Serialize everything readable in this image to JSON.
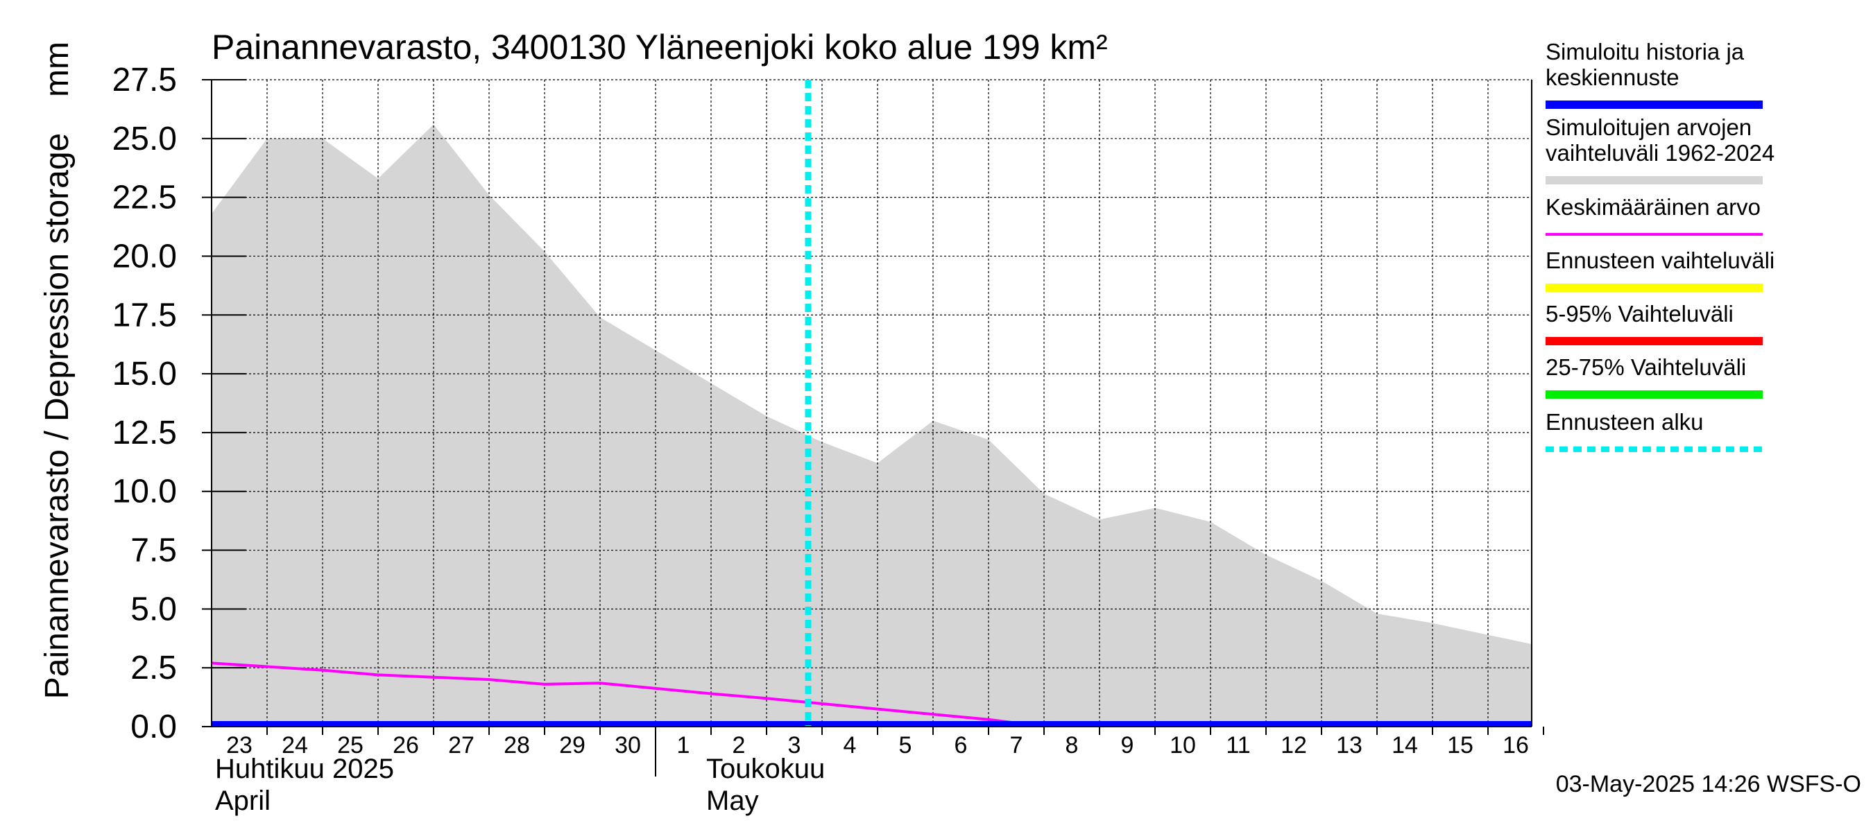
{
  "chart_data": {
    "type": "area",
    "title": "Painannevarasto, 3400130 Yläneenjoki koko alue 199 km²",
    "ylabel": "Painannevarasto / Depression storage",
    "yunit": "mm",
    "ylim": [
      0,
      27.5
    ],
    "yticks": [
      "0.0",
      "2.5",
      "5.0",
      "7.5",
      "10.0",
      "12.5",
      "15.0",
      "17.5",
      "20.0",
      "22.5",
      "25.0",
      "27.5"
    ],
    "x_day_labels": [
      "23",
      "24",
      "25",
      "26",
      "27",
      "28",
      "29",
      "30",
      "1",
      "2",
      "3",
      "4",
      "5",
      "6",
      "7",
      "8",
      "9",
      "10",
      "11",
      "12",
      "13",
      "14",
      "15",
      "16"
    ],
    "x_month_labels": [
      {
        "line1": "Huhtikuu  2025",
        "line2": "April"
      },
      {
        "line1": "Toukokuu",
        "line2": "May"
      }
    ],
    "grid": true,
    "legend_position": "right",
    "forecast_start": "2025-05-02 18:00",
    "series": [
      {
        "name": "Simuloitu historia ja keskiennuste",
        "type": "line",
        "color": "#0000ff",
        "points": [
          [
            "2025-04-22",
            0.0
          ],
          [
            "2025-05-17",
            0.0
          ]
        ]
      },
      {
        "name": "Simuloitujen arvojen vaihteluväli 1962-2024",
        "type": "band",
        "color": "#d5d5d5",
        "lower": [
          [
            "2025-04-22",
            0.0
          ],
          [
            "2025-05-17",
            0.0
          ]
        ],
        "upper": [
          [
            "2025-04-22",
            21.8
          ],
          [
            "2025-04-23",
            25.0
          ],
          [
            "2025-04-24",
            25.0
          ],
          [
            "2025-04-25",
            23.3
          ],
          [
            "2025-04-26",
            25.6
          ],
          [
            "2025-04-27",
            22.6
          ],
          [
            "2025-04-28",
            20.2
          ],
          [
            "2025-04-29",
            17.4
          ],
          [
            "2025-04-30",
            16.0
          ],
          [
            "2025-05-01",
            14.6
          ],
          [
            "2025-05-02",
            13.2
          ],
          [
            "2025-05-03",
            12.1
          ],
          [
            "2025-05-04",
            11.2
          ],
          [
            "2025-05-05",
            13.0
          ],
          [
            "2025-05-06",
            12.2
          ],
          [
            "2025-05-07",
            9.9
          ],
          [
            "2025-05-08",
            8.8
          ],
          [
            "2025-05-09",
            9.3
          ],
          [
            "2025-05-10",
            8.7
          ],
          [
            "2025-05-11",
            7.3
          ],
          [
            "2025-05-12",
            6.2
          ],
          [
            "2025-05-13",
            4.8
          ],
          [
            "2025-05-14",
            4.4
          ],
          [
            "2025-05-15",
            3.9
          ],
          [
            "2025-05-16",
            3.4
          ]
        ]
      },
      {
        "name": "Keskimääräinen arvo",
        "type": "line",
        "color": "#ff00ff",
        "points": [
          [
            "2025-04-22",
            2.7
          ],
          [
            "2025-04-24",
            2.4
          ],
          [
            "2025-04-25",
            2.2
          ],
          [
            "2025-04-27",
            2.0
          ],
          [
            "2025-04-28",
            1.8
          ],
          [
            "2025-04-29",
            1.85
          ],
          [
            "2025-05-01",
            1.4
          ],
          [
            "2025-05-02",
            1.2
          ],
          [
            "2025-05-04",
            0.75
          ],
          [
            "2025-05-06",
            0.3
          ],
          [
            "2025-05-07",
            0.0
          ],
          [
            "2025-05-16",
            0.0
          ]
        ]
      },
      {
        "name": "Ennusteen vaihteluväli",
        "type": "legend-only",
        "color": "#ffff00"
      },
      {
        "name": "5-95% Vaihteluväli",
        "type": "legend-only",
        "color": "#ff0000"
      },
      {
        "name": "25-75% Vaihteluväli",
        "type": "legend-only",
        "color": "#00ee00"
      },
      {
        "name": "Ennusteen alku",
        "type": "vline",
        "color": "#00eeee"
      }
    ],
    "legend": [
      {
        "lines": [
          "Simuloitu historia ja",
          "keskiennuste"
        ],
        "color": "#0000ff",
        "style": "solid"
      },
      {
        "lines": [
          "Simuloitujen arvojen",
          "vaihteluväli 1962-2024"
        ],
        "color": "#d5d5d5",
        "style": "solid"
      },
      {
        "lines": [
          "Keskimääräinen arvo"
        ],
        "color": "#ff00ff",
        "style": "thin"
      },
      {
        "lines": [
          "Ennusteen vaihteluväli"
        ],
        "color": "#ffff00",
        "style": "solid"
      },
      {
        "lines": [
          "5-95% Vaihteluväli"
        ],
        "color": "#ff0000",
        "style": "solid"
      },
      {
        "lines": [
          "25-75% Vaihteluväli"
        ],
        "color": "#00ee00",
        "style": "solid"
      },
      {
        "lines": [
          "Ennusteen alku"
        ],
        "color": "#00eeee",
        "style": "dashed"
      }
    ],
    "footer": "03-May-2025 14:26 WSFS-O"
  }
}
